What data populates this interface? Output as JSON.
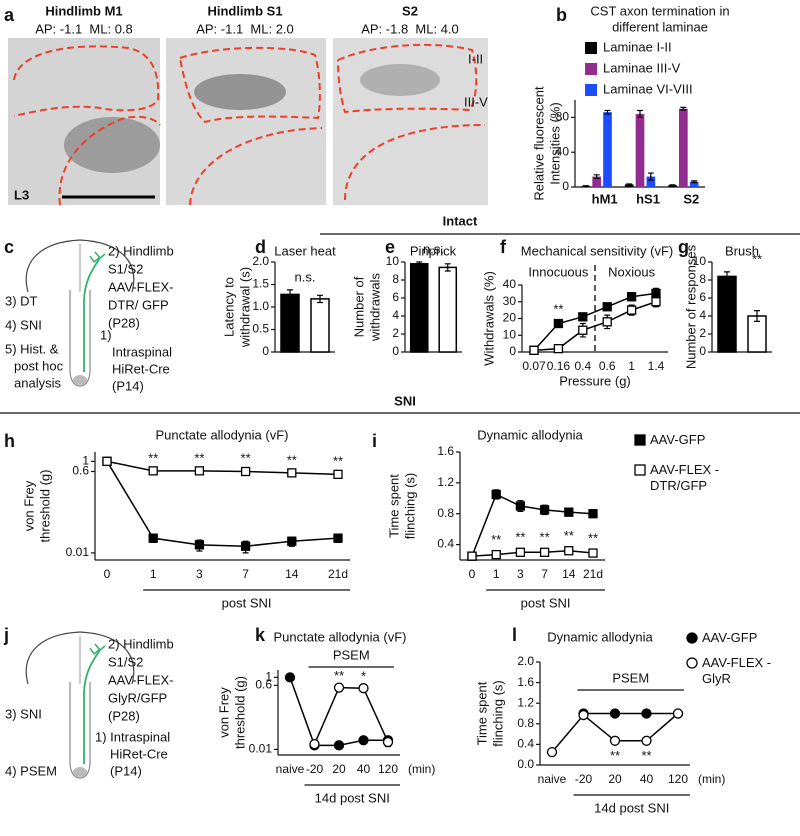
{
  "panel_letters": [
    "a",
    "b",
    "c",
    "d",
    "e",
    "f",
    "g",
    "h",
    "i",
    "j",
    "k",
    "l"
  ],
  "section_labels": [
    "Intact",
    "SNI"
  ],
  "panel_a": {
    "images": [
      {
        "title": "Hindlimb M1",
        "coordinates": "AP: -1.1  ML: 0.8"
      },
      {
        "title": "Hindlimb S1",
        "coordinates": "AP: -1.1  ML: 2.0"
      },
      {
        "title": "S2",
        "coordinates": "AP: -1.8  ML: 4.0"
      }
    ],
    "laminae": [
      "I-II",
      "III-V"
    ],
    "segment": "L3"
  },
  "panel_c": {
    "right_lines": [
      "2) Hindlimb",
      "S1/S2",
      "AAV-FLEX-",
      "DTR/ GFP",
      "(P28)"
    ],
    "left_lines": [
      "3) DT",
      "4) SNI",
      "5) Hist. &",
      "post hoc",
      "analysis"
    ],
    "bottom_lines": [
      "1)",
      "Intraspinal",
      "HiRet-Cre",
      "(P14)"
    ]
  },
  "panel_j": {
    "right_lines": [
      "2) Hindlimb",
      "S1/S2",
      "AAV-FLEX-",
      "GlyR/GFP",
      "(P28)"
    ],
    "left_lines": [
      "3) SNI",
      "4) PSEM"
    ],
    "bottom_lines": [
      "1) Intraspinal",
      "HiRet-Cre",
      "(P14)"
    ]
  },
  "chart_data": [
    {
      "type": "bar",
      "title": [
        "CST axon termination in",
        "different laminae"
      ],
      "y_label": [
        "Relative fluorescent",
        "Intensities (%)"
      ],
      "categories": [
        "hM1",
        "hS1",
        "S2"
      ],
      "series": [
        {
          "name": "Laminae I-II",
          "color": "#000000",
          "values": [
            1,
            3,
            2
          ],
          "errors": [
            0.5,
            0.5,
            0.5
          ]
        },
        {
          "name": "Laminae III-V",
          "color": "#922d8f",
          "values": [
            12,
            84,
            90
          ],
          "errors": [
            2,
            4,
            1.5
          ]
        },
        {
          "name": "Laminae VI-VIII",
          "color": "#1e4dff",
          "values": [
            86,
            12,
            6
          ],
          "errors": [
            2,
            4,
            1
          ]
        }
      ],
      "ylim": [
        0,
        100
      ],
      "yticks": [
        0,
        40,
        80
      ],
      "legend": "top-left"
    },
    {
      "type": "bar",
      "title": "Laser heat",
      "y_label": [
        "Latency to",
        "withdrawal (s)"
      ],
      "values": [
        1.28,
        1.18
      ],
      "errors": [
        0.1,
        0.08
      ],
      "colors": [
        "#000000",
        "#ffffff"
      ],
      "ylim": [
        0,
        2
      ],
      "yticks": [
        0,
        0.5,
        {
          "value": 1,
          "label": "1.0"
        },
        1.5,
        {
          "value": 2,
          "label": "2.0"
        }
      ],
      "significance": "n.s."
    },
    {
      "type": "bar",
      "title": "Pinprick",
      "y_label": [
        "Number of",
        "withdrawals"
      ],
      "values": [
        9.8,
        9.4
      ],
      "errors": [
        0.2,
        0.4
      ],
      "colors": [
        "#000000",
        "#ffffff"
      ],
      "ylim": [
        0,
        10
      ],
      "yticks": [
        0,
        2,
        4,
        6,
        8,
        10
      ],
      "significance": "n.s."
    },
    {
      "type": "line",
      "title": "Mechanical sensitivity (vF)",
      "y_label": [
        "Withdrawals (%)"
      ],
      "x_label": "Pressure (g)",
      "categories": [
        "0.07",
        "0.16",
        "0.4",
        "0.6",
        "1",
        "1.4"
      ],
      "series": [
        {
          "color": "#000000",
          "fill": "#000000",
          "marker": "square",
          "values": [
            1,
            17,
            21,
            27,
            33,
            35
          ],
          "errors": [
            0.5,
            2,
            1.5,
            2,
            2.5,
            3
          ]
        },
        {
          "color": "#000000",
          "fill": "#ffffff",
          "marker": "square",
          "values": [
            1,
            2,
            13,
            18,
            25,
            30
          ],
          "errors": [
            0.5,
            1,
            4,
            4,
            3,
            3
          ]
        }
      ],
      "ylim": [
        0,
        40
      ],
      "yticks": [
        0,
        10,
        20,
        30,
        40
      ],
      "significance": [
        null,
        "**",
        null,
        null,
        null,
        null
      ],
      "regions": [
        "Innocuous",
        "Noxious"
      ]
    },
    {
      "type": "bar",
      "title": "Brush",
      "y_label": [
        "Number of responses"
      ],
      "values": [
        8.4,
        4.0
      ],
      "errors": [
        0.5,
        0.6
      ],
      "colors": [
        "#000000",
        "#ffffff"
      ],
      "ylim": [
        0,
        10
      ],
      "yticks": [
        0,
        2,
        4,
        6,
        8,
        10
      ],
      "significance": "**"
    },
    {
      "type": "line",
      "title": "Punctate allodynia (vF)",
      "y_label": [
        "von Frey",
        "threshold (g)"
      ],
      "x_label": "post SNI",
      "categories": [
        "0",
        "1",
        "3",
        "7",
        "14",
        "21d"
      ],
      "log_scale": true,
      "series": [
        {
          "color": "#000000",
          "fill": "#000000",
          "marker": "square",
          "values": [
            1,
            0.021,
            0.015,
            0.014,
            0.018,
            0.021
          ],
          "errors": [
            0.05,
            0.004,
            0.004,
            0.004,
            0.004,
            0.004
          ]
        },
        {
          "color": "#000000",
          "fill": "#ffffff",
          "marker": "square",
          "values": [
            1,
            0.62,
            0.62,
            0.6,
            0.56,
            0.52
          ],
          "errors": [
            0.05,
            0.06,
            0.06,
            0.07,
            0.06,
            0.06
          ]
        }
      ],
      "ylim": [
        0.007,
        1.6
      ],
      "yticks": [
        0.01,
        0.6,
        1
      ],
      "significance": [
        null,
        "**",
        "**",
        "**",
        "**",
        "**"
      ]
    },
    {
      "type": "line",
      "title": "Dynamic allodynia",
      "y_label": [
        "Time spent",
        "flinching (s)"
      ],
      "x_label": "post SNI",
      "categories": [
        "0",
        "1",
        "3",
        "7",
        "14",
        "21d"
      ],
      "series": [
        {
          "name": "AAV-GFP",
          "color": "#000000",
          "fill": "#000000",
          "marker": "square",
          "values": [
            0.25,
            1.05,
            0.9,
            0.85,
            0.82,
            0.8
          ],
          "errors": [
            0.02,
            0.06,
            0.07,
            0.06,
            0.05,
            0.05
          ]
        },
        {
          "name": "AAV-FLEX -DTR/GFP",
          "color": "#000000",
          "fill": "#ffffff",
          "marker": "square",
          "values": [
            0.25,
            0.27,
            0.3,
            0.3,
            0.32,
            0.29
          ],
          "errors": [
            0.02,
            0.02,
            0.03,
            0.02,
            0.02,
            0.02
          ]
        }
      ],
      "ylim": [
        0.2,
        1.6
      ],
      "yticks": [
        0.4,
        0.8,
        1.2,
        1.6
      ],
      "significance": [
        null,
        "**",
        "**",
        "**",
        "**",
        "**"
      ]
    },
    {
      "type": "line",
      "title": "Punctate allodynia (vF)",
      "y_label": [
        "von Frey",
        "threshold (g)"
      ],
      "x_label": "14d post SNI",
      "x_unit": "(min)",
      "categories": [
        "naive",
        "-20",
        "20",
        "40",
        "120"
      ],
      "log_scale": true,
      "treatment": "PSEM",
      "series": [
        {
          "color": "#000000",
          "fill": "#000000",
          "marker": "circle",
          "values": [
            1,
            0.013,
            0.013,
            0.018,
            0.018
          ],
          "errors": [
            0.05,
            0.002,
            0.002,
            0.003,
            0.003
          ]
        },
        {
          "color": "#000000",
          "fill": "#ffffff",
          "marker": "circle",
          "values": [
            null,
            0.014,
            0.52,
            0.5,
            0.016
          ],
          "errors": [
            null,
            0.002,
            0.04,
            0.04,
            0.004
          ]
        }
      ],
      "ylim": [
        0.007,
        1.6
      ],
      "yticks": [
        0.01,
        0.6,
        1
      ],
      "significance": [
        null,
        null,
        "**",
        "*",
        null
      ]
    },
    {
      "type": "line",
      "title": "Dynamic allodynia",
      "y_label": [
        "Time spent",
        "flinching (s)"
      ],
      "x_label": "14d post SNI",
      "x_unit": "(min)",
      "categories": [
        "naive",
        "-20",
        "20",
        "40",
        "120"
      ],
      "treatment": "PSEM",
      "series": [
        {
          "name": "AAV-GFP",
          "color": "#000000",
          "fill": "#000000",
          "marker": "circle",
          "values": [
            null,
            1.0,
            1.0,
            1.0,
            1.0
          ],
          "errors": [
            null,
            0.05,
            0.05,
            0.04,
            0.05
          ]
        },
        {
          "name": "AAV-FLEX -GlyR",
          "color": "#000000",
          "fill": "#ffffff",
          "marker": "circle",
          "values": [
            0.25,
            0.97,
            0.47,
            0.47,
            1.0
          ],
          "errors": [
            0.02,
            0.05,
            0.05,
            0.05,
            0.06
          ]
        }
      ],
      "ylim": [
        0,
        2
      ],
      "yticks": [
        {
          "value": 0,
          "label": "0.0"
        },
        0.4,
        0.8,
        1.2,
        1.6,
        {
          "value": 2,
          "label": "2.0"
        }
      ],
      "significance": [
        null,
        null,
        "**",
        "**",
        null
      ]
    }
  ]
}
